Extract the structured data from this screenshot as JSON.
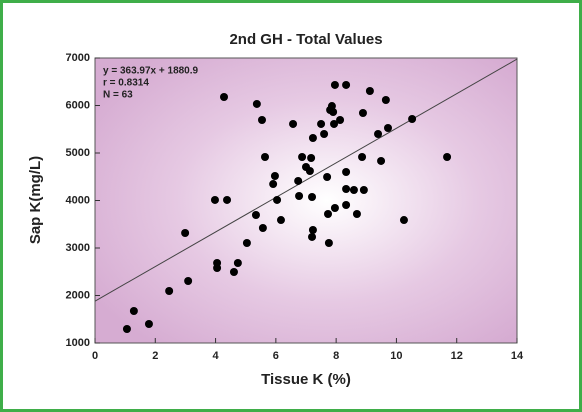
{
  "chart_data": {
    "type": "scatter",
    "title": "2nd GH - Total Values",
    "x_label": "Tissue K (%)",
    "y_label": "Sap K(mg/L)",
    "annotations": [
      "y = 363.97x + 1880.9",
      "r = 0.8314",
      "N = 63"
    ],
    "trendline": {
      "slope": 363.97,
      "intercept": 1880.9
    },
    "color": "#000000",
    "x": [
      1.06,
      1.29,
      1.79,
      2.46,
      2.99,
      3.09,
      3.98,
      4.05,
      4.05,
      4.28,
      4.38,
      4.61,
      4.74,
      5.04,
      5.34,
      5.37,
      5.54,
      5.57,
      5.64,
      5.91,
      5.97,
      6.04,
      6.17,
      6.57,
      6.74,
      6.77,
      6.87,
      7.0,
      7.13,
      7.17,
      7.2,
      7.23,
      7.23,
      7.2,
      7.5,
      7.6,
      7.7,
      7.73,
      7.76,
      7.8,
      7.86,
      7.9,
      7.96,
      7.93,
      7.96,
      8.33,
      8.33,
      8.33,
      8.33,
      8.59,
      8.69,
      8.86,
      8.89,
      8.92,
      9.12,
      9.39,
      9.49,
      9.65,
      9.72,
      10.25,
      10.52,
      11.68,
      8.13
    ],
    "y": [
      1295,
      1674,
      1400,
      2095,
      3316,
      2305,
      4011,
      2684,
      2579,
      6179,
      4011,
      2495,
      2684,
      3105,
      3695,
      6032,
      5695,
      3421,
      4916,
      4347,
      4516,
      4011,
      3589,
      5611,
      4411,
      4095,
      4916,
      4705,
      4621,
      4895,
      4074,
      5316,
      3379,
      3232,
      5611,
      5400,
      4495,
      3716,
      3105,
      5905,
      5989,
      5863,
      6432,
      5611,
      3842,
      6432,
      4600,
      4242,
      3905,
      4221,
      3716,
      4916,
      5842,
      4221,
      6305,
      5400,
      4832,
      6116,
      5526,
      3589,
      5716,
      4916,
      5695
    ],
    "xlim": [
      0,
      14
    ],
    "xticks": [
      0,
      2,
      4,
      6,
      8,
      10,
      12,
      14
    ],
    "ylim": [
      1000,
      7000
    ],
    "yticks": [
      1000,
      2000,
      3000,
      4000,
      5000,
      6000,
      7000
    ]
  }
}
